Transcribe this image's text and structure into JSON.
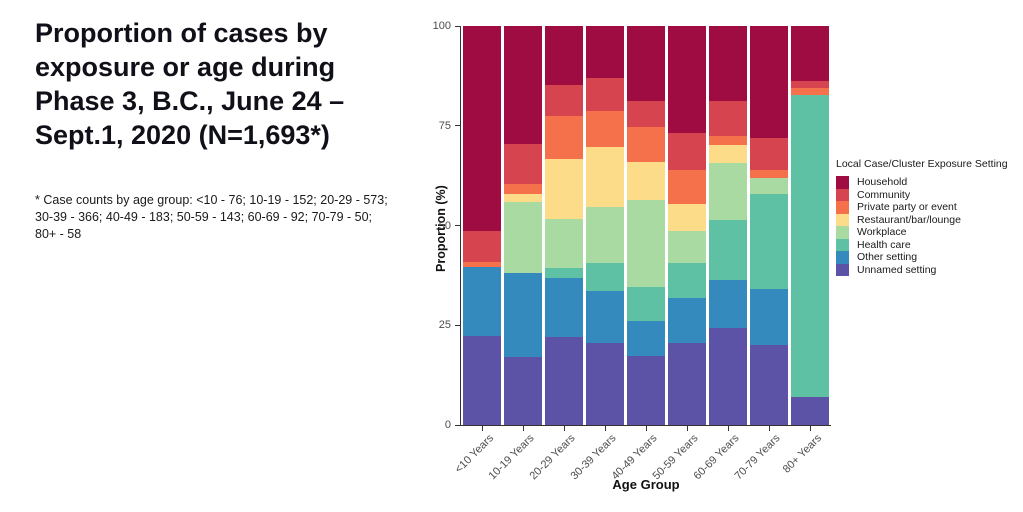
{
  "page": {
    "title": "Proportion of cases by\nexposure or age  during\nPhase 3, B.C., June 24 –\nSept.1, 2020 (N=1,693*)",
    "footnote": "* Case counts by age group: <10 - 76; 10-19 - 152; 20-29 - 573;\n30-39 - 366; 40-49 - 183; 50-59 - 143; 60-69 - 92; 70-79 - 50;\n80+ - 58"
  },
  "chart_data": {
    "type": "bar",
    "subtype": "stacked_percent",
    "title": "Proportion of cases by exposure or age during Phase 3, B.C., June 24 – Sept.1, 2020 (N=1,693*)",
    "xlabel": "Age Group",
    "ylabel": "Proportion (%)",
    "ylim": [
      0,
      100
    ],
    "yticks": [
      0,
      25,
      50,
      75,
      100
    ],
    "grid": "off",
    "legend_position": "right",
    "legend_title": "Local Case/Cluster Exposure Setting",
    "categories": [
      "<10 Years",
      "10-19 Years",
      "20-29 Years",
      "30-39 Years",
      "40-49 Years",
      "50-59 Years",
      "60-69 Years",
      "70-79 Years",
      "80+ Years"
    ],
    "case_counts": {
      "<10": 76,
      "10-19": 152,
      "20-29": 573,
      "30-39": 366,
      "40-49": 183,
      "50-59": 143,
      "60-69": 92,
      "70-79": 50,
      "80+": 58
    },
    "series": [
      {
        "name": "Household",
        "color": "#9E0C42",
        "values": [
          51.3,
          29.6,
          14.8,
          13.0,
          18.8,
          26.7,
          18.8,
          28.0,
          13.8
        ]
      },
      {
        "name": "Community",
        "color": "#D6454F",
        "values": [
          7.9,
          9.9,
          7.8,
          8.3,
          6.6,
          9.5,
          8.7,
          8.0,
          1.7
        ]
      },
      {
        "name": "Private party or event",
        "color": "#F4714B",
        "values": [
          1.3,
          2.6,
          10.7,
          9.1,
          8.8,
          8.3,
          2.4,
          2.0,
          1.7
        ]
      },
      {
        "name": "Restaurant/bar/lounge",
        "color": "#FDDC89",
        "values": [
          0,
          1.9,
          15.0,
          14.9,
          9.5,
          7.0,
          4.4,
          0,
          0
        ]
      },
      {
        "name": "Workplace",
        "color": "#A8DAA1",
        "values": [
          0,
          17.8,
          12.4,
          14.2,
          21.6,
          8.0,
          14.4,
          4.0,
          0
        ]
      },
      {
        "name": "Health care",
        "color": "#5FC1A4",
        "values": [
          0,
          0,
          2.4,
          7.0,
          8.7,
          8.8,
          14.9,
          24.0,
          75.9
        ]
      },
      {
        "name": "Other setting",
        "color": "#3489BD",
        "values": [
          17.1,
          21.1,
          14.9,
          13.0,
          8.7,
          11.1,
          12.0,
          14.0,
          0
        ]
      },
      {
        "name": "Unnamed setting",
        "color": "#5C53A6",
        "values": [
          22.4,
          17.1,
          22.0,
          20.5,
          17.3,
          20.6,
          24.4,
          20.0,
          6.9
        ]
      }
    ]
  }
}
